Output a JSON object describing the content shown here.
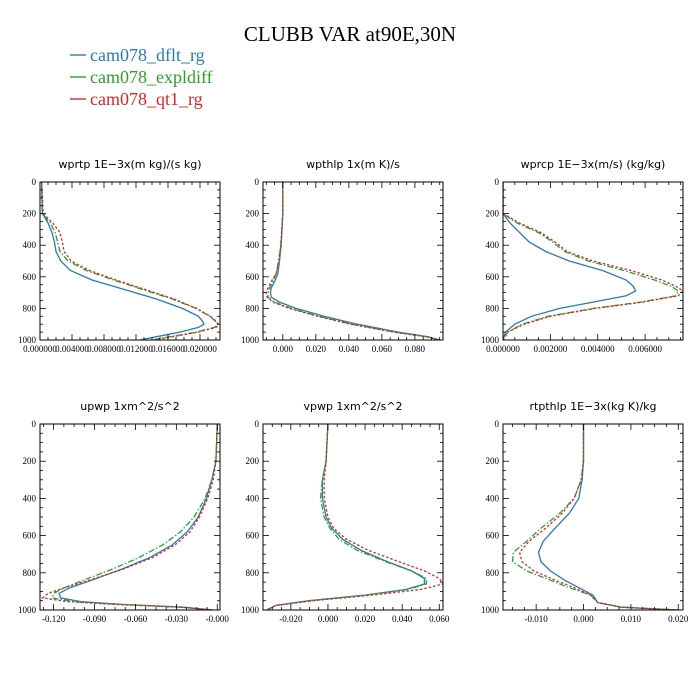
{
  "title": "CLUBB VAR at90E,30N",
  "legend": [
    {
      "name": "cam078_dflt_rg",
      "color": "#2a7ab8",
      "dash": "solid"
    },
    {
      "name": "cam078_expldiff",
      "color": "#2ca02c",
      "dash": "dashdot"
    },
    {
      "name": "cam078_qt1_rg",
      "color": "#d62728",
      "dash": "dotted"
    }
  ],
  "chart_data": [
    {
      "type": "line",
      "title": "wprtp   1E−3x(m kg)/(s kg)",
      "ylim": [
        1000,
        0
      ],
      "yticks": [
        "0",
        "200",
        "400",
        "600",
        "800",
        "1000"
      ],
      "xlim": [
        0,
        0.0225
      ],
      "xticks": [
        {
          "v": 0.0,
          "l": "0.000000"
        },
        {
          "v": 0.004,
          "l": "0.004000"
        },
        {
          "v": 0.008,
          "l": "0.008000"
        },
        {
          "v": 0.012,
          "l": "0.012000"
        },
        {
          "v": 0.016,
          "l": "0.016000"
        },
        {
          "v": 0.02,
          "l": "0.020000"
        }
      ],
      "y": [
        0,
        200,
        260,
        320,
        380,
        440,
        500,
        560,
        620,
        680,
        740,
        800,
        850,
        880,
        900,
        920,
        950,
        980,
        1000
      ],
      "series": [
        {
          "values": [
            0.0002,
            0.0003,
            0.001,
            0.0015,
            0.0018,
            0.002,
            0.0026,
            0.0038,
            0.0065,
            0.0105,
            0.0145,
            0.0178,
            0.0198,
            0.0203,
            0.0205,
            0.0198,
            0.0175,
            0.0145,
            0.0125
          ]
        },
        {
          "values": [
            0.0002,
            0.0003,
            0.0013,
            0.0019,
            0.0022,
            0.0025,
            0.0035,
            0.0058,
            0.0092,
            0.0128,
            0.0165,
            0.0195,
            0.0212,
            0.0219,
            0.0222,
            0.0218,
            0.0195,
            0.0162,
            0.014
          ]
        },
        {
          "values": [
            0.0002,
            0.0004,
            0.0016,
            0.0025,
            0.0028,
            0.003,
            0.0039,
            0.0062,
            0.0095,
            0.0131,
            0.0167,
            0.0196,
            0.0213,
            0.022,
            0.0223,
            0.022,
            0.0198,
            0.0165,
            0.0143
          ]
        }
      ]
    },
    {
      "type": "line",
      "title": "wpthlp   1x(m K)/s",
      "ylim": [
        1000,
        0
      ],
      "yticks": [
        "0",
        "200",
        "400",
        "600",
        "800",
        "1000"
      ],
      "xlim": [
        -0.012,
        0.097
      ],
      "xticks": [
        {
          "v": 0.0,
          "l": "0.000"
        },
        {
          "v": 0.02,
          "l": "0.020"
        },
        {
          "v": 0.04,
          "l": "0.040"
        },
        {
          "v": 0.06,
          "l": "0.060"
        },
        {
          "v": 0.08,
          "l": "0.080"
        }
      ],
      "y": [
        0,
        200,
        400,
        500,
        580,
        630,
        670,
        700,
        730,
        760,
        800,
        850,
        900,
        950,
        980,
        1000
      ],
      "series": [
        {
          "values": [
            0.0,
            0.0,
            -0.001,
            -0.002,
            -0.003,
            -0.005,
            -0.007,
            -0.0075,
            -0.007,
            -0.002,
            0.008,
            0.025,
            0.045,
            0.07,
            0.088,
            0.095
          ]
        },
        {
          "values": [
            0.0,
            0.0,
            -0.0012,
            -0.0025,
            -0.004,
            -0.006,
            -0.008,
            -0.009,
            -0.009,
            -0.005,
            0.005,
            0.022,
            0.042,
            0.068,
            0.087,
            0.095
          ]
        },
        {
          "values": [
            0.0,
            0.0,
            -0.0012,
            -0.0025,
            -0.004,
            -0.007,
            -0.009,
            -0.01,
            -0.0095,
            -0.006,
            0.004,
            0.021,
            0.041,
            0.067,
            0.087,
            0.095
          ]
        }
      ]
    },
    {
      "type": "line",
      "title": "wprcp   1E−3x(m/s) (kg/kg)",
      "ylim": [
        1000,
        0
      ],
      "yticks": [
        "0",
        "200",
        "400",
        "600",
        "800",
        "1000"
      ],
      "xlim": [
        0,
        0.0076
      ],
      "xticks": [
        {
          "v": 0.0,
          "l": "0.000000"
        },
        {
          "v": 0.002,
          "l": "0.002000"
        },
        {
          "v": 0.004,
          "l": "0.004000"
        },
        {
          "v": 0.006,
          "l": "0.006000"
        }
      ],
      "y": [
        0,
        200,
        260,
        320,
        380,
        440,
        500,
        560,
        620,
        660,
        690,
        720,
        760,
        800,
        850,
        900,
        950,
        1000
      ],
      "series": [
        {
          "values": [
            0.0,
            0.0,
            0.0003,
            0.0007,
            0.0011,
            0.0018,
            0.0028,
            0.0042,
            0.0052,
            0.0055,
            0.0056,
            0.0052,
            0.0038,
            0.0024,
            0.0012,
            0.0005,
            0.0001,
            0.0
          ]
        },
        {
          "values": [
            0.0,
            0.0,
            0.0006,
            0.0015,
            0.0021,
            0.0026,
            0.0036,
            0.0051,
            0.0064,
            0.0071,
            0.0074,
            0.0073,
            0.0058,
            0.0038,
            0.0019,
            0.0008,
            0.0002,
            0.0
          ]
        },
        {
          "values": [
            0.0,
            0.0,
            0.0007,
            0.0016,
            0.0022,
            0.0027,
            0.0038,
            0.0054,
            0.0067,
            0.0073,
            0.0076,
            0.0074,
            0.0059,
            0.0039,
            0.002,
            0.0009,
            0.0002,
            0.0
          ]
        }
      ]
    },
    {
      "type": "line",
      "title": "upwp   1xm^2/s^2",
      "ylim": [
        1000,
        0
      ],
      "yticks": [
        "0",
        "200",
        "400",
        "600",
        "800",
        "1000"
      ],
      "xlim": [
        -0.13,
        0.002
      ],
      "xticks": [
        {
          "v": -0.12,
          "l": "-0.120"
        },
        {
          "v": -0.09,
          "l": "-0.090"
        },
        {
          "v": -0.06,
          "l": "-0.060"
        },
        {
          "v": -0.03,
          "l": "-0.030"
        },
        {
          "v": 0.0,
          "l": "-0.000"
        }
      ],
      "y": [
        0,
        200,
        300,
        400,
        500,
        580,
        650,
        720,
        780,
        840,
        880,
        910,
        935,
        955,
        970,
        985,
        1000
      ],
      "series": [
        {
          "values": [
            0.0,
            -0.001,
            -0.004,
            -0.008,
            -0.014,
            -0.022,
            -0.033,
            -0.05,
            -0.07,
            -0.092,
            -0.108,
            -0.116,
            -0.115,
            -0.1,
            -0.07,
            -0.025,
            -0.003
          ]
        },
        {
          "values": [
            0.0,
            -0.001,
            -0.004,
            -0.009,
            -0.017,
            -0.027,
            -0.04,
            -0.058,
            -0.077,
            -0.098,
            -0.112,
            -0.12,
            -0.121,
            -0.105,
            -0.072,
            -0.026,
            -0.003
          ]
        },
        {
          "values": [
            0.0,
            -0.001,
            -0.003,
            -0.007,
            -0.013,
            -0.02,
            -0.031,
            -0.048,
            -0.069,
            -0.094,
            -0.112,
            -0.124,
            -0.128,
            -0.11,
            -0.075,
            -0.027,
            -0.003
          ]
        }
      ]
    },
    {
      "type": "line",
      "title": "vpwp   1xm^2/s^2",
      "ylim": [
        1000,
        0
      ],
      "yticks": [
        "0",
        "200",
        "400",
        "600",
        "800",
        "1000"
      ],
      "xlim": [
        -0.035,
        0.062
      ],
      "xticks": [
        {
          "v": -0.02,
          "l": "-0.020"
        },
        {
          "v": 0.0,
          "l": "0.000"
        },
        {
          "v": 0.02,
          "l": "0.020"
        },
        {
          "v": 0.04,
          "l": "0.040"
        },
        {
          "v": 0.06,
          "l": "0.060"
        }
      ],
      "y": [
        0,
        200,
        300,
        400,
        500,
        560,
        620,
        680,
        740,
        790,
        830,
        860,
        890,
        920,
        950,
        975,
        1000
      ],
      "series": [
        {
          "values": [
            0.0,
            -0.001,
            -0.003,
            -0.003,
            -0.001,
            0.002,
            0.008,
            0.018,
            0.032,
            0.045,
            0.052,
            0.052,
            0.042,
            0.02,
            -0.01,
            -0.028,
            -0.033
          ]
        },
        {
          "values": [
            0.0,
            -0.001,
            -0.003,
            -0.004,
            -0.002,
            0.001,
            0.006,
            0.016,
            0.031,
            0.045,
            0.053,
            0.053,
            0.043,
            0.02,
            -0.01,
            -0.028,
            -0.033
          ]
        },
        {
          "values": [
            0.0,
            -0.001,
            -0.002,
            -0.002,
            0.0,
            0.003,
            0.01,
            0.022,
            0.038,
            0.052,
            0.06,
            0.062,
            0.05,
            0.024,
            -0.008,
            -0.028,
            -0.033
          ]
        }
      ]
    },
    {
      "type": "line",
      "title": "rtpthlp   1E−3x(kg K)/kg",
      "ylim": [
        1000,
        0
      ],
      "yticks": [
        "0",
        "200",
        "400",
        "600",
        "800",
        "1000"
      ],
      "xlim": [
        -0.017,
        0.021
      ],
      "xticks": [
        {
          "v": -0.01,
          "l": "-0.010"
        },
        {
          "v": 0.0,
          "l": "0.000"
        },
        {
          "v": 0.01,
          "l": "0.010"
        },
        {
          "v": 0.02,
          "l": "0.020"
        }
      ],
      "y": [
        0,
        200,
        300,
        400,
        480,
        560,
        630,
        690,
        740,
        790,
        840,
        880,
        920,
        960,
        985,
        1000
      ],
      "series": [
        {
          "values": [
            0.0,
            0.0,
            -0.0003,
            -0.001,
            -0.003,
            -0.006,
            -0.0085,
            -0.0095,
            -0.009,
            -0.007,
            -0.004,
            -0.001,
            0.002,
            0.003,
            0.008,
            0.02
          ]
        },
        {
          "values": [
            0.0,
            0.0,
            -0.0005,
            -0.002,
            -0.005,
            -0.009,
            -0.012,
            -0.0148,
            -0.015,
            -0.012,
            -0.007,
            -0.003,
            0.0015,
            0.003,
            0.008,
            0.02
          ]
        },
        {
          "values": [
            0.0,
            0.0,
            -0.0005,
            -0.002,
            -0.0045,
            -0.008,
            -0.0115,
            -0.0135,
            -0.013,
            -0.0105,
            -0.006,
            -0.002,
            0.0015,
            0.003,
            0.008,
            0.02
          ]
        }
      ]
    }
  ]
}
